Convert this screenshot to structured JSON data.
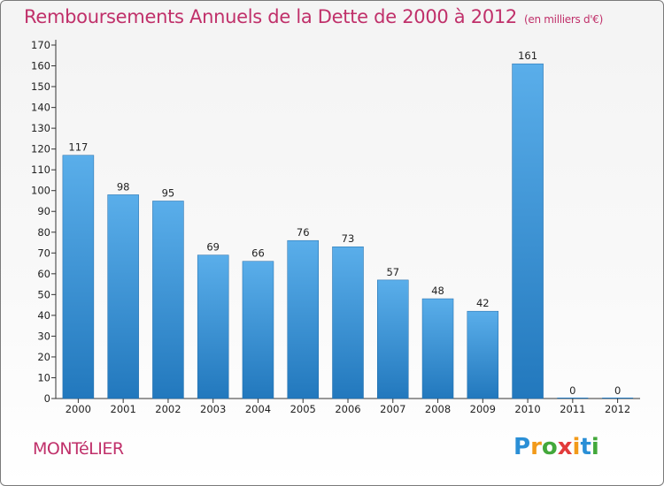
{
  "header": {
    "title": "Remboursements Annuels de la Dette de 2000 à 2012",
    "unit": "(en milliers d'€)"
  },
  "footer": {
    "commune": "MONTéLIER",
    "logo_letters": [
      "P",
      "r",
      "o",
      "x",
      "i",
      "t",
      "i"
    ],
    "logo_colors": [
      "#2a8fd6",
      "#f29a1a",
      "#43a83b",
      "#e23b3b",
      "#f29a1a",
      "#2a8fd6",
      "#43a83b"
    ]
  },
  "colors": {
    "bar_top": "#5aaeea",
    "bar_bottom": "#2278bd",
    "title": "#c0306a"
  },
  "chart_data": {
    "type": "bar",
    "title": "Remboursements Annuels de la Dette de 2000 à 2012",
    "xlabel": "",
    "ylabel": "",
    "categories": [
      "2000",
      "2001",
      "2002",
      "2003",
      "2004",
      "2005",
      "2006",
      "2007",
      "2008",
      "2009",
      "2010",
      "2011",
      "2012"
    ],
    "values": [
      117,
      98,
      95,
      69,
      66,
      76,
      73,
      57,
      48,
      42,
      161,
      0,
      0
    ],
    "ylim": [
      0,
      170
    ],
    "yticks": [
      0,
      10,
      20,
      30,
      40,
      50,
      60,
      70,
      80,
      90,
      100,
      110,
      120,
      130,
      140,
      150,
      160,
      170
    ],
    "grid": false,
    "legend": "none"
  }
}
